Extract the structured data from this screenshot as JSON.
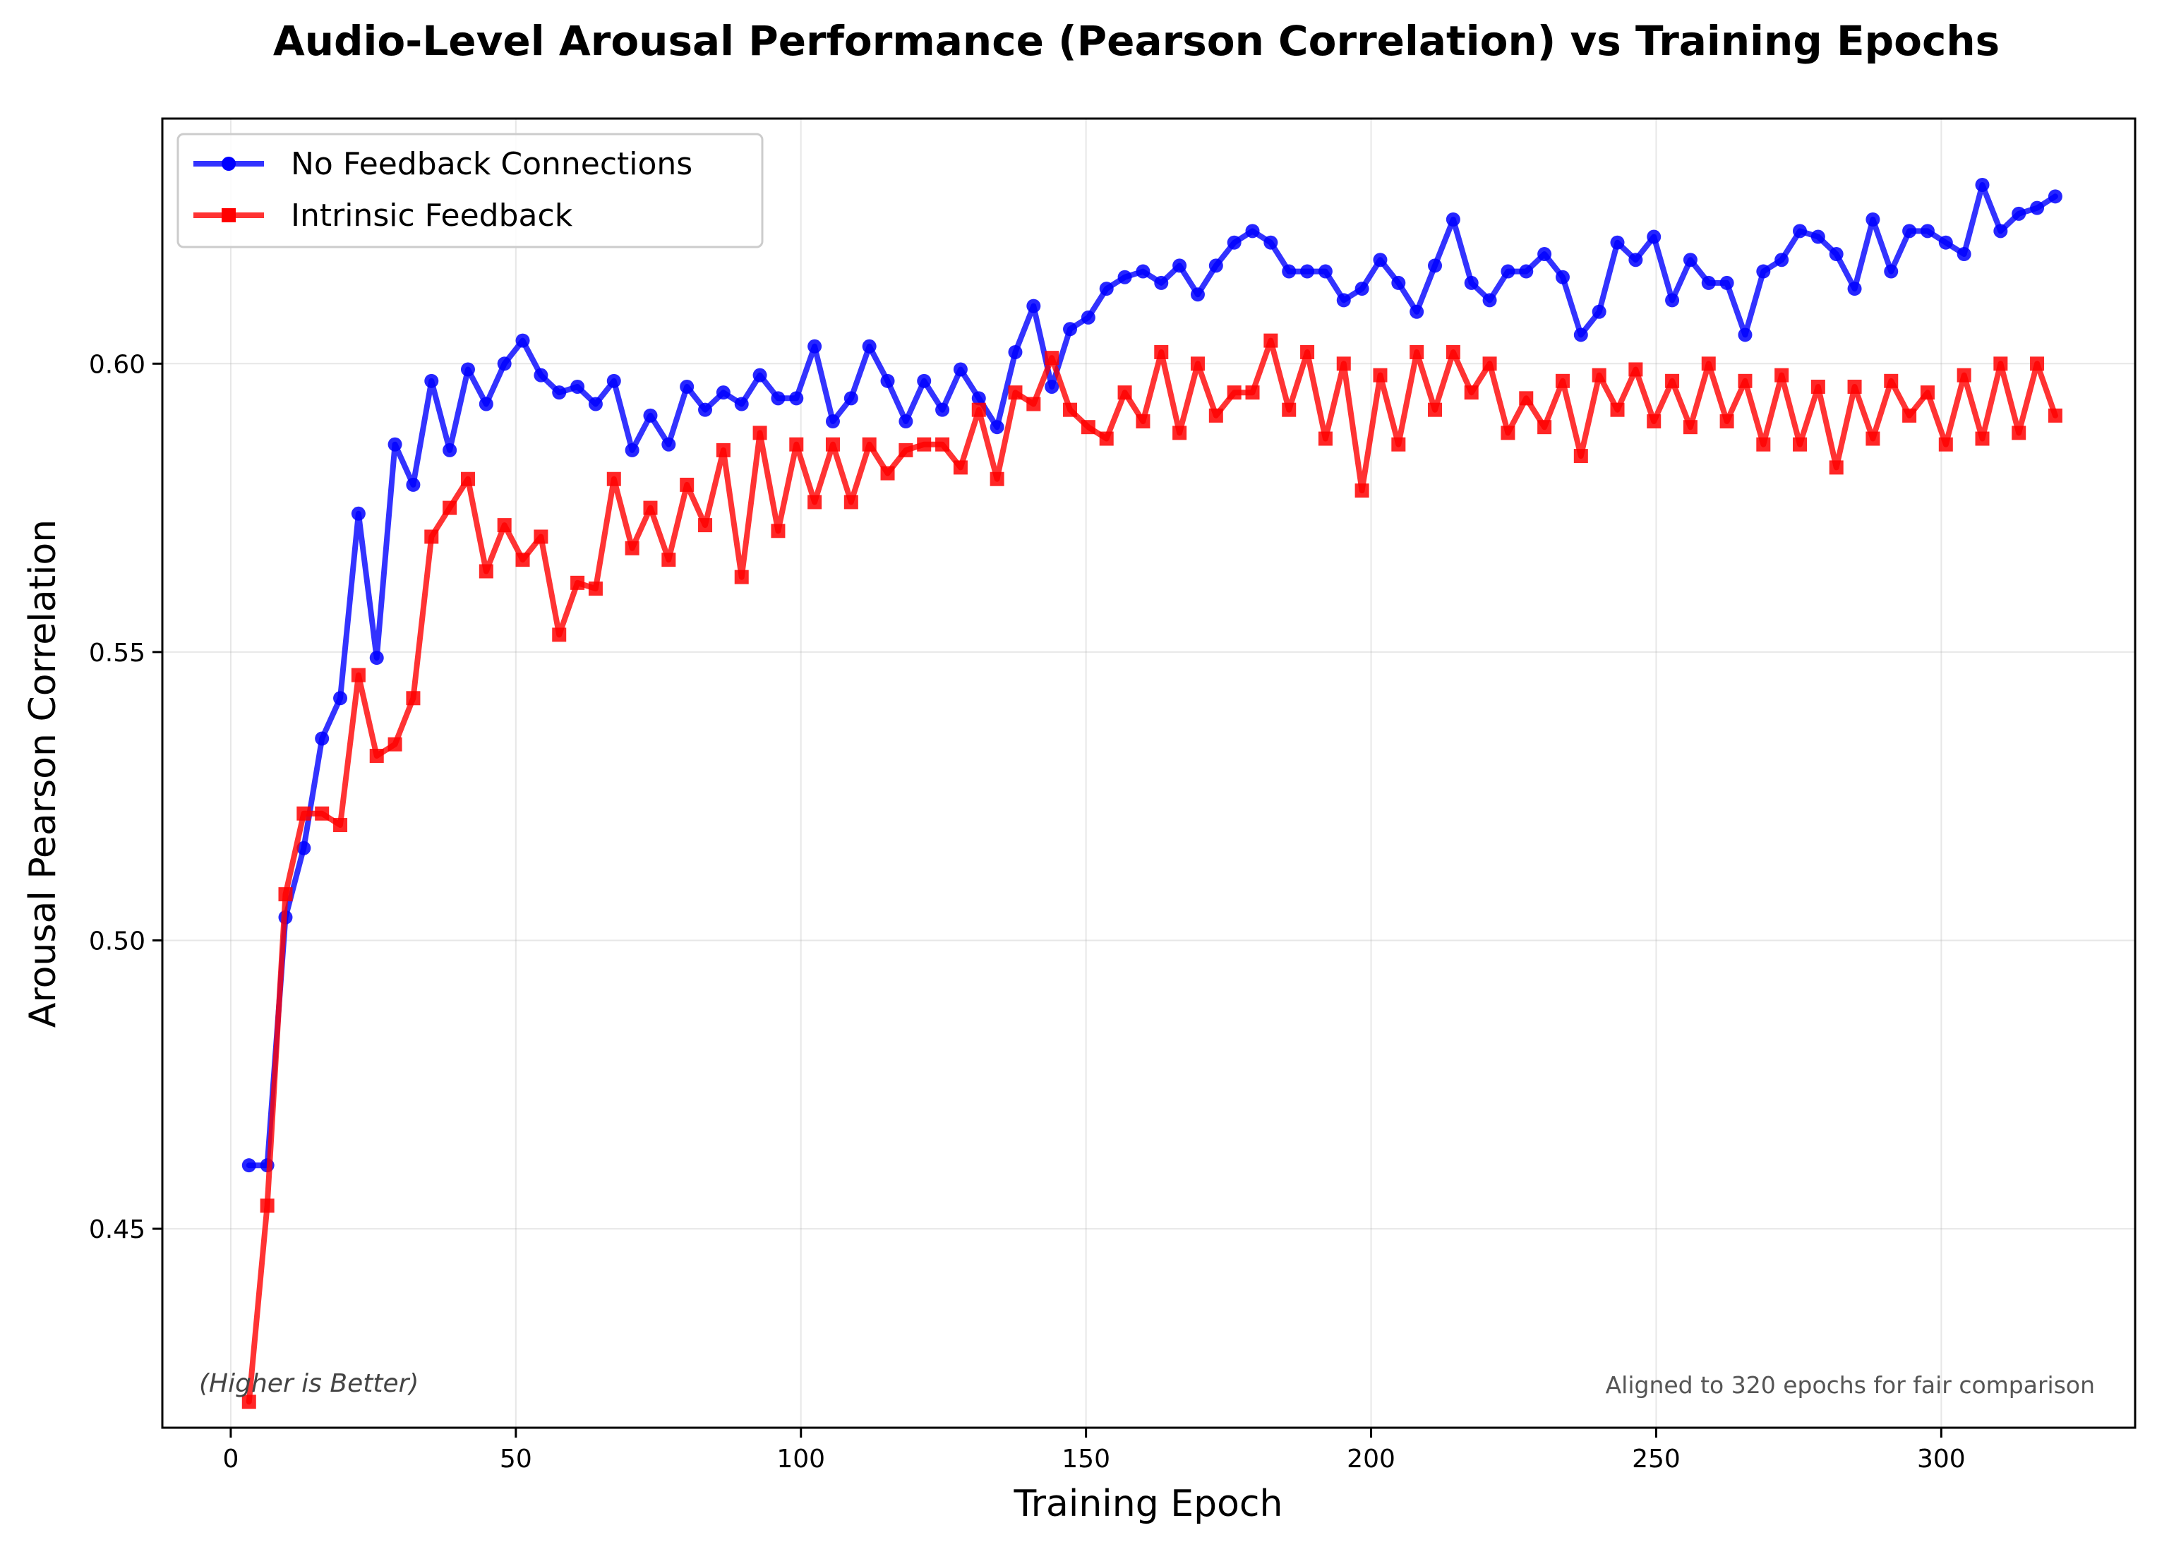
{
  "chart_data": {
    "type": "line",
    "title": "Audio-Level Arousal Performance (Pearson Correlation) vs Training Epochs",
    "xlabel": "Training Epoch",
    "ylabel": "Arousal Pearson Correlation",
    "xlim": [
      -12,
      334
    ],
    "ylim": [
      0.4155,
      0.6425
    ],
    "xticks": [
      0,
      50,
      100,
      150,
      200,
      250,
      300
    ],
    "yticks": [
      0.45,
      0.5,
      0.55,
      0.6
    ],
    "ytick_labels": [
      "0.45",
      "0.50",
      "0.55",
      "0.60"
    ],
    "grid": true,
    "legend_position": "top-left",
    "annotations": {
      "left": "(Higher is Better)",
      "right": "Aligned to 320 epochs for fair comparison"
    },
    "x": [
      3.2,
      6.4,
      9.6,
      12.8,
      16,
      19.2,
      22.4,
      25.6,
      28.8,
      32,
      35.2,
      38.4,
      41.6,
      44.8,
      48,
      51.2,
      54.4,
      57.6,
      60.8,
      64,
      67.2,
      70.4,
      73.6,
      76.8,
      80,
      83.2,
      86.4,
      89.6,
      92.8,
      96,
      99.2,
      102.4,
      105.6,
      108.8,
      112,
      115.2,
      118.4,
      121.6,
      124.8,
      128,
      131.2,
      134.4,
      137.6,
      140.8,
      144,
      147.2,
      150.4,
      153.6,
      156.8,
      160,
      163.2,
      166.4,
      169.6,
      172.8,
      176,
      179.2,
      182.4,
      185.6,
      188.8,
      192,
      195.2,
      198.4,
      201.6,
      204.8,
      208,
      211.2,
      214.4,
      217.6,
      220.8,
      224,
      227.2,
      230.4,
      233.6,
      236.8,
      240,
      243.2,
      246.4,
      249.6,
      252.8,
      256,
      259.2,
      262.4,
      265.6,
      268.8,
      272,
      275.2,
      278.4,
      281.6,
      284.8,
      288,
      291.2,
      294.4,
      297.6,
      300.8,
      304,
      307.2,
      310.4,
      313.6,
      316.8,
      320
    ],
    "series": [
      {
        "name": "No Feedback Connections",
        "color": "#0000ff",
        "marker": "circle",
        "values": [
          0.461,
          0.461,
          0.504,
          0.516,
          0.535,
          0.542,
          0.574,
          0.549,
          0.586,
          0.579,
          0.597,
          0.585,
          0.599,
          0.593,
          0.6,
          0.604,
          0.598,
          0.595,
          0.596,
          0.593,
          0.597,
          0.585,
          0.591,
          0.586,
          0.596,
          0.592,
          0.595,
          0.593,
          0.598,
          0.594,
          0.594,
          0.603,
          0.59,
          0.594,
          0.603,
          0.597,
          0.59,
          0.597,
          0.592,
          0.599,
          0.594,
          0.589,
          0.602,
          0.61,
          0.596,
          0.606,
          0.608,
          0.613,
          0.615,
          0.616,
          0.614,
          0.617,
          0.612,
          0.617,
          0.621,
          0.623,
          0.621,
          0.616,
          0.616,
          0.616,
          0.611,
          0.613,
          0.618,
          0.614,
          0.609,
          0.617,
          0.625,
          0.614,
          0.611,
          0.616,
          0.616,
          0.619,
          0.615,
          0.605,
          0.609,
          0.621,
          0.618,
          0.622,
          0.611,
          0.618,
          0.614,
          0.614,
          0.605,
          0.616,
          0.618,
          0.623,
          0.622,
          0.619,
          0.613,
          0.625,
          0.616,
          0.623,
          0.623,
          0.621,
          0.619,
          0.631,
          0.623,
          0.626,
          0.627,
          0.629
        ]
      },
      {
        "name": "Intrinsic Feedback",
        "color": "#ff0000",
        "marker": "square",
        "values": [
          0.42,
          0.454,
          0.508,
          0.522,
          0.522,
          0.52,
          0.546,
          0.532,
          0.534,
          0.542,
          0.57,
          0.575,
          0.58,
          0.564,
          0.572,
          0.566,
          0.57,
          0.553,
          0.562,
          0.561,
          0.58,
          0.568,
          0.575,
          0.566,
          0.579,
          0.572,
          0.585,
          0.563,
          0.588,
          0.571,
          0.586,
          0.576,
          0.586,
          0.576,
          0.586,
          0.581,
          0.585,
          0.586,
          0.586,
          0.582,
          0.592,
          0.58,
          0.595,
          0.593,
          0.601,
          0.592,
          0.589,
          0.587,
          0.595,
          0.59,
          0.602,
          0.588,
          0.6,
          0.591,
          0.595,
          0.595,
          0.604,
          0.592,
          0.602,
          0.587,
          0.6,
          0.578,
          0.598,
          0.586,
          0.602,
          0.592,
          0.602,
          0.595,
          0.6,
          0.588,
          0.594,
          0.589,
          0.597,
          0.584,
          0.598,
          0.592,
          0.599,
          0.59,
          0.597,
          0.589,
          0.6,
          0.59,
          0.597,
          0.586,
          0.598,
          0.586,
          0.596,
          0.582,
          0.596,
          0.587,
          0.597,
          0.591,
          0.595,
          0.586,
          0.598,
          0.587,
          0.6,
          0.588,
          0.6,
          0.591
        ]
      }
    ]
  }
}
